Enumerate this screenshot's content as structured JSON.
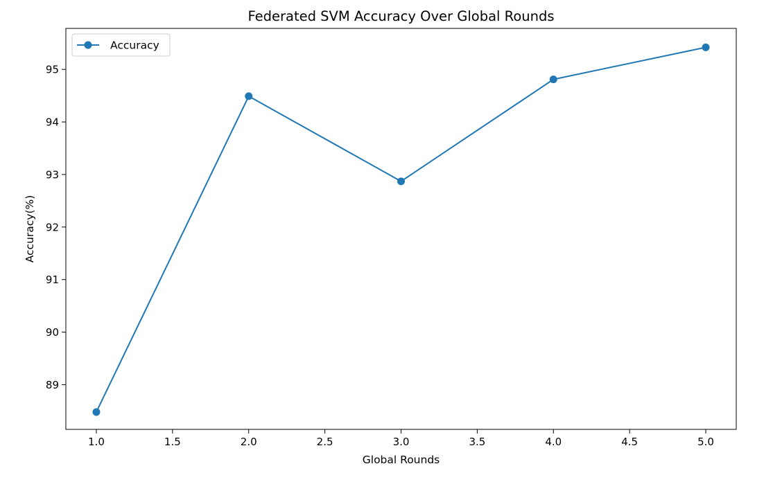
{
  "chart_data": {
    "type": "line",
    "title": "Federated SVM Accuracy Over Global Rounds",
    "xlabel": "Global Rounds",
    "ylabel": "Accuracy(%)",
    "xlim": [
      0.8,
      5.2
    ],
    "ylim": [
      88.15,
      95.78
    ],
    "xticks": [
      1.0,
      1.5,
      2.0,
      2.5,
      3.0,
      3.5,
      4.0,
      4.5,
      5.0
    ],
    "xtick_labels": [
      "1.0",
      "1.5",
      "2.0",
      "2.5",
      "3.0",
      "3.5",
      "4.0",
      "4.5",
      "5.0"
    ],
    "yticks": [
      89,
      90,
      91,
      92,
      93,
      94,
      95
    ],
    "ytick_labels": [
      "89",
      "90",
      "91",
      "92",
      "93",
      "94",
      "95"
    ],
    "grid": false,
    "legend_position": "top-left",
    "series": [
      {
        "name": "Accuracy",
        "color": "#1f77b4",
        "marker": "circle",
        "x": [
          1,
          2,
          3,
          4,
          5
        ],
        "y": [
          88.48,
          94.49,
          92.87,
          94.81,
          95.42
        ]
      }
    ]
  }
}
